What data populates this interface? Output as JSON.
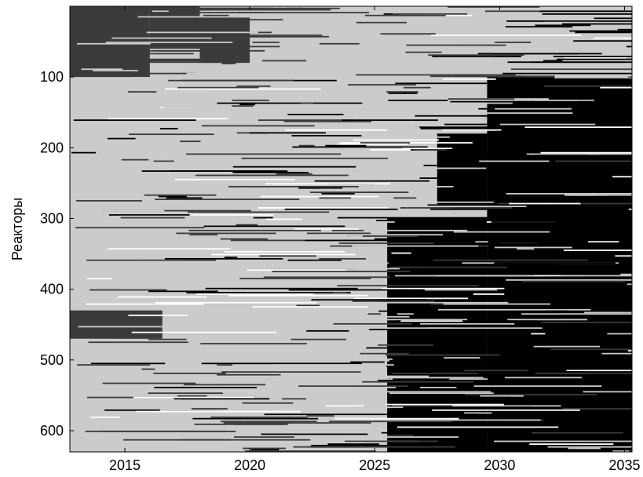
{
  "chart_data": {
    "type": "heatmap",
    "title": "",
    "xlabel": "",
    "ylabel": "Реакторы",
    "xlim": [
      2012.8,
      2035.3
    ],
    "ylim": [
      0,
      630
    ],
    "y_inverted": true,
    "x_ticks": [
      "2015",
      "2020",
      "2025",
      "2030",
      "2035"
    ],
    "y_ticks": [
      "100",
      "200",
      "300",
      "400",
      "500",
      "600"
    ],
    "grid": false,
    "colors": {
      "state_dark": "#3b3b3b",
      "state_light": "#cbcbcb",
      "state_white": "#ffffff",
      "state_black": "#000000",
      "background": "#cbcbcb",
      "axis": "#000000"
    },
    "bands": [
      {
        "y0": 0,
        "y1": 100,
        "x0": 2012.8,
        "x1": 2035.3,
        "state": "state_light"
      },
      {
        "y0": 0,
        "y1": 100,
        "x0": 2012.8,
        "x1": 2016.0,
        "state": "state_dark"
      },
      {
        "y0": 0,
        "y1": 60,
        "x0": 2016.0,
        "x1": 2018.0,
        "state": "state_dark"
      },
      {
        "y0": 15,
        "y1": 80,
        "x0": 2018.0,
        "x1": 2020.0,
        "state": "state_dark"
      },
      {
        "y0": 100,
        "y1": 630,
        "x0": 2029.5,
        "x1": 2035.3,
        "state": "state_black"
      },
      {
        "y0": 180,
        "y1": 280,
        "x0": 2027.5,
        "x1": 2029.5,
        "state": "state_black"
      },
      {
        "y0": 300,
        "y1": 630,
        "x0": 2025.5,
        "x1": 2029.5,
        "state": "state_black"
      },
      {
        "y0": 430,
        "y1": 470,
        "x0": 2012.8,
        "x1": 2016.5,
        "state": "state_dark"
      },
      {
        "y0": 580,
        "y1": 600,
        "x0": 2029.5,
        "x1": 2035.3,
        "state": "state_black"
      }
    ]
  }
}
